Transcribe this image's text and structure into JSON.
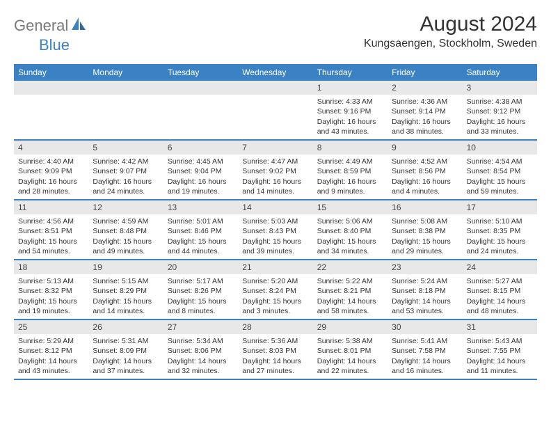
{
  "brand": {
    "part1": "General",
    "part2": "Blue",
    "icon_color": "#3b82c4",
    "text_gray": "#7a7a7a"
  },
  "title": "August 2024",
  "location": "Kungsaengen, Stockholm, Sweden",
  "colors": {
    "header_bg": "#3b82c4",
    "header_text": "#ffffff",
    "daynum_bg": "#e8e8e8",
    "body_text": "#333333",
    "rule": "#3b82c4"
  },
  "typography": {
    "title_pt": 30,
    "location_pt": 16,
    "dayname_pt": 12,
    "daynum_pt": 12,
    "body_pt": 10.5
  },
  "daynames": [
    "Sunday",
    "Monday",
    "Tuesday",
    "Wednesday",
    "Thursday",
    "Friday",
    "Saturday"
  ],
  "weeks": [
    [
      null,
      null,
      null,
      null,
      {
        "n": "1",
        "sunrise": "Sunrise: 4:33 AM",
        "sunset": "Sunset: 9:16 PM",
        "daylight": "Daylight: 16 hours and 43 minutes."
      },
      {
        "n": "2",
        "sunrise": "Sunrise: 4:36 AM",
        "sunset": "Sunset: 9:14 PM",
        "daylight": "Daylight: 16 hours and 38 minutes."
      },
      {
        "n": "3",
        "sunrise": "Sunrise: 4:38 AM",
        "sunset": "Sunset: 9:12 PM",
        "daylight": "Daylight: 16 hours and 33 minutes."
      }
    ],
    [
      {
        "n": "4",
        "sunrise": "Sunrise: 4:40 AM",
        "sunset": "Sunset: 9:09 PM",
        "daylight": "Daylight: 16 hours and 28 minutes."
      },
      {
        "n": "5",
        "sunrise": "Sunrise: 4:42 AM",
        "sunset": "Sunset: 9:07 PM",
        "daylight": "Daylight: 16 hours and 24 minutes."
      },
      {
        "n": "6",
        "sunrise": "Sunrise: 4:45 AM",
        "sunset": "Sunset: 9:04 PM",
        "daylight": "Daylight: 16 hours and 19 minutes."
      },
      {
        "n": "7",
        "sunrise": "Sunrise: 4:47 AM",
        "sunset": "Sunset: 9:02 PM",
        "daylight": "Daylight: 16 hours and 14 minutes."
      },
      {
        "n": "8",
        "sunrise": "Sunrise: 4:49 AM",
        "sunset": "Sunset: 8:59 PM",
        "daylight": "Daylight: 16 hours and 9 minutes."
      },
      {
        "n": "9",
        "sunrise": "Sunrise: 4:52 AM",
        "sunset": "Sunset: 8:56 PM",
        "daylight": "Daylight: 16 hours and 4 minutes."
      },
      {
        "n": "10",
        "sunrise": "Sunrise: 4:54 AM",
        "sunset": "Sunset: 8:54 PM",
        "daylight": "Daylight: 15 hours and 59 minutes."
      }
    ],
    [
      {
        "n": "11",
        "sunrise": "Sunrise: 4:56 AM",
        "sunset": "Sunset: 8:51 PM",
        "daylight": "Daylight: 15 hours and 54 minutes."
      },
      {
        "n": "12",
        "sunrise": "Sunrise: 4:59 AM",
        "sunset": "Sunset: 8:48 PM",
        "daylight": "Daylight: 15 hours and 49 minutes."
      },
      {
        "n": "13",
        "sunrise": "Sunrise: 5:01 AM",
        "sunset": "Sunset: 8:46 PM",
        "daylight": "Daylight: 15 hours and 44 minutes."
      },
      {
        "n": "14",
        "sunrise": "Sunrise: 5:03 AM",
        "sunset": "Sunset: 8:43 PM",
        "daylight": "Daylight: 15 hours and 39 minutes."
      },
      {
        "n": "15",
        "sunrise": "Sunrise: 5:06 AM",
        "sunset": "Sunset: 8:40 PM",
        "daylight": "Daylight: 15 hours and 34 minutes."
      },
      {
        "n": "16",
        "sunrise": "Sunrise: 5:08 AM",
        "sunset": "Sunset: 8:38 PM",
        "daylight": "Daylight: 15 hours and 29 minutes."
      },
      {
        "n": "17",
        "sunrise": "Sunrise: 5:10 AM",
        "sunset": "Sunset: 8:35 PM",
        "daylight": "Daylight: 15 hours and 24 minutes."
      }
    ],
    [
      {
        "n": "18",
        "sunrise": "Sunrise: 5:13 AM",
        "sunset": "Sunset: 8:32 PM",
        "daylight": "Daylight: 15 hours and 19 minutes."
      },
      {
        "n": "19",
        "sunrise": "Sunrise: 5:15 AM",
        "sunset": "Sunset: 8:29 PM",
        "daylight": "Daylight: 15 hours and 14 minutes."
      },
      {
        "n": "20",
        "sunrise": "Sunrise: 5:17 AM",
        "sunset": "Sunset: 8:26 PM",
        "daylight": "Daylight: 15 hours and 8 minutes."
      },
      {
        "n": "21",
        "sunrise": "Sunrise: 5:20 AM",
        "sunset": "Sunset: 8:24 PM",
        "daylight": "Daylight: 15 hours and 3 minutes."
      },
      {
        "n": "22",
        "sunrise": "Sunrise: 5:22 AM",
        "sunset": "Sunset: 8:21 PM",
        "daylight": "Daylight: 14 hours and 58 minutes."
      },
      {
        "n": "23",
        "sunrise": "Sunrise: 5:24 AM",
        "sunset": "Sunset: 8:18 PM",
        "daylight": "Daylight: 14 hours and 53 minutes."
      },
      {
        "n": "24",
        "sunrise": "Sunrise: 5:27 AM",
        "sunset": "Sunset: 8:15 PM",
        "daylight": "Daylight: 14 hours and 48 minutes."
      }
    ],
    [
      {
        "n": "25",
        "sunrise": "Sunrise: 5:29 AM",
        "sunset": "Sunset: 8:12 PM",
        "daylight": "Daylight: 14 hours and 43 minutes."
      },
      {
        "n": "26",
        "sunrise": "Sunrise: 5:31 AM",
        "sunset": "Sunset: 8:09 PM",
        "daylight": "Daylight: 14 hours and 37 minutes."
      },
      {
        "n": "27",
        "sunrise": "Sunrise: 5:34 AM",
        "sunset": "Sunset: 8:06 PM",
        "daylight": "Daylight: 14 hours and 32 minutes."
      },
      {
        "n": "28",
        "sunrise": "Sunrise: 5:36 AM",
        "sunset": "Sunset: 8:03 PM",
        "daylight": "Daylight: 14 hours and 27 minutes."
      },
      {
        "n": "29",
        "sunrise": "Sunrise: 5:38 AM",
        "sunset": "Sunset: 8:01 PM",
        "daylight": "Daylight: 14 hours and 22 minutes."
      },
      {
        "n": "30",
        "sunrise": "Sunrise: 5:41 AM",
        "sunset": "Sunset: 7:58 PM",
        "daylight": "Daylight: 14 hours and 16 minutes."
      },
      {
        "n": "31",
        "sunrise": "Sunrise: 5:43 AM",
        "sunset": "Sunset: 7:55 PM",
        "daylight": "Daylight: 14 hours and 11 minutes."
      }
    ]
  ]
}
